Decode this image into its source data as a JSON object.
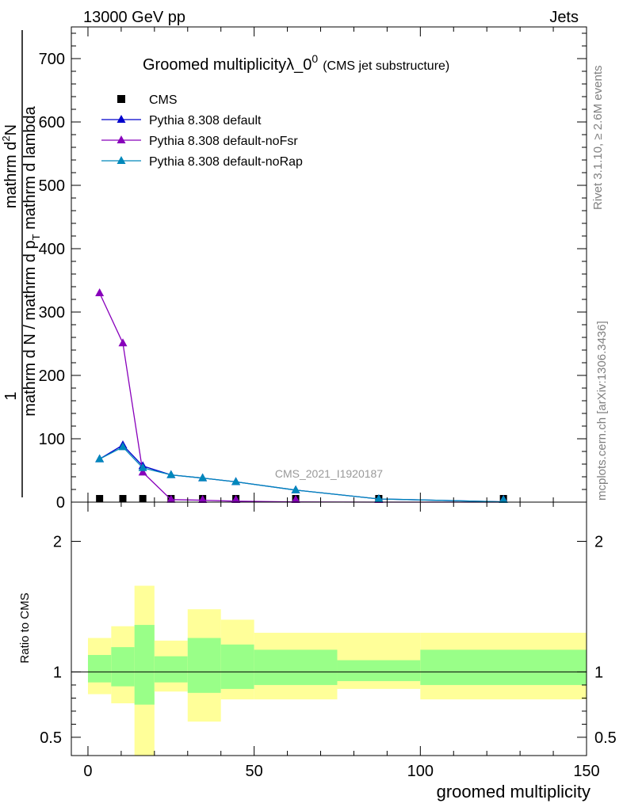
{
  "header": {
    "left": "13000 GeV pp",
    "right": "Jets"
  },
  "side_labels": {
    "rivet": "Rivet 3.1.10, ≥ 2.6M events",
    "mcplots": "mcplots.cern.ch [arXiv:1306.3436]"
  },
  "chart_data": [
    {
      "type": "line",
      "title": "Groomed multiplicityλ_0^0",
      "title_main": "Groomed multiplicityλ_0",
      "title_sup": "0",
      "subtitle": "(CMS jet substructure)",
      "watermark": "CMS_2021_I1920187",
      "ylabel_parts": [
        "1",
        "mathrm d N / mathrm d p_T mathrm d lambda",
        "mathrm d²N",
        "mathrm d p_T mathrm d lambda"
      ],
      "ylabel_num": "1",
      "ylabel_den1": "mathrm d N / mathrm d p",
      "ylabel_den2": " mathrm d lambda",
      "ylabel_num2": "mathrm d",
      "ylabel_num2_sup": "2",
      "ylabel_num2_end": "N",
      "ylabel_den3": "mathrm d p",
      "ylabel_den3_end": " mathrm d lambda",
      "ylabel_sub": "T",
      "xlim": [
        -5,
        150
      ],
      "ylim": [
        0,
        750
      ],
      "yticks": [
        0,
        100,
        200,
        300,
        400,
        500,
        600,
        700
      ],
      "legend_position": "top-left",
      "bins": [
        [
          2,
          5
        ],
        [
          5,
          8
        ],
        [
          8,
          11
        ],
        [
          11,
          14
        ],
        [
          14,
          18
        ],
        [
          18,
          21
        ],
        [
          21,
          24
        ],
        [
          24,
          27
        ],
        [
          27,
          30
        ],
        [
          30,
          33
        ],
        [
          33,
          36
        ],
        [
          36,
          39
        ],
        [
          39,
          45
        ],
        [
          45,
          50
        ],
        [
          50,
          63
        ],
        [
          63,
          77
        ],
        [
          77,
          98
        ],
        [
          98,
          125
        ],
        [
          125,
          150
        ]
      ],
      "series": [
        {
          "name": "CMS",
          "color": "#000000",
          "marker": "square",
          "x": [
            3.5,
            10.5,
            16.5,
            25,
            34.5,
            44.5,
            62.5,
            87.5,
            125
          ],
          "values": [
            0,
            0,
            0,
            0,
            0,
            0,
            0,
            0,
            0
          ]
        },
        {
          "name": "Pythia 8.308 default",
          "color": "#0000cc",
          "marker": "triangle",
          "x": [
            3.5,
            10.5,
            16.5,
            25,
            34.5,
            44.5,
            62.5,
            87.5,
            125
          ],
          "values": [
            68,
            90,
            57,
            43,
            38,
            32,
            19,
            5,
            0.5
          ]
        },
        {
          "name": "Pythia 8.308 default-noFsr",
          "color": "#8800bb",
          "marker": "triangle",
          "x": [
            3.5,
            10.5,
            16.5,
            25,
            34.5,
            44.5,
            62.5,
            87.5,
            125
          ],
          "values": [
            330,
            251,
            47,
            4,
            3,
            1.5,
            0.3,
            0,
            0
          ]
        },
        {
          "name": "Pythia 8.308 default-noRap",
          "color": "#0088bb",
          "marker": "triangle",
          "x": [
            3.5,
            10.5,
            16.5,
            25,
            34.5,
            44.5,
            62.5,
            87.5,
            125
          ],
          "values": [
            68,
            87,
            54,
            43,
            38,
            32,
            19,
            5,
            0.5
          ]
        }
      ]
    },
    {
      "type": "area",
      "xlabel": "groomed multiplicity",
      "ylabel": "Ratio to CMS",
      "xlim": [
        -5,
        150
      ],
      "ylim": [
        0.36,
        2.3
      ],
      "yticks": [
        0.5,
        1,
        2
      ],
      "xticks": [
        0,
        50,
        100,
        150
      ],
      "band_edges": [
        0,
        7,
        14,
        20,
        30,
        40,
        50,
        75,
        100,
        150
      ],
      "yellow_band": {
        "low": [
          0.83,
          0.76,
          0.35,
          0.85,
          0.62,
          0.79,
          0.79,
          0.87,
          0.79
        ],
        "high": [
          1.26,
          1.35,
          1.66,
          1.24,
          1.48,
          1.4,
          1.3,
          1.3,
          1.3
        ]
      },
      "green_band": {
        "low": [
          0.92,
          0.89,
          0.75,
          0.92,
          0.84,
          0.87,
          0.9,
          0.93,
          0.9
        ],
        "high": [
          1.13,
          1.19,
          1.36,
          1.12,
          1.26,
          1.21,
          1.17,
          1.09,
          1.17
        ]
      },
      "band_colors": {
        "outer": "#ffff99",
        "inner": "#99ff88"
      },
      "reference": 1
    }
  ]
}
